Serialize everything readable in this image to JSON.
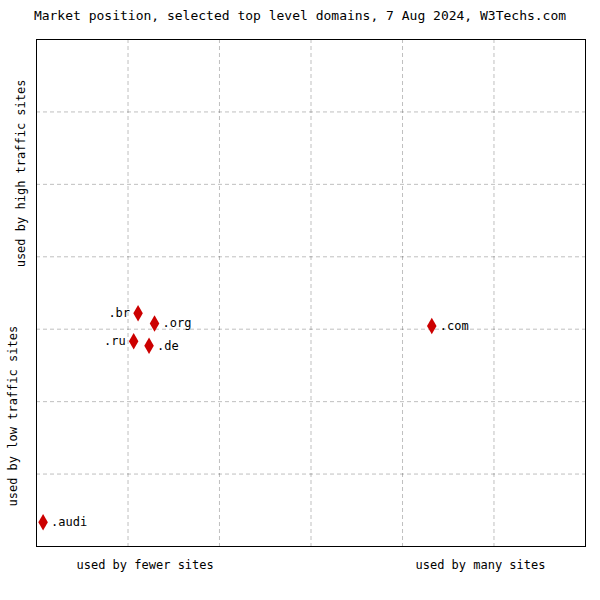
{
  "chart_data": {
    "type": "scatter",
    "title": "Market position, selected top level domains, 7 Aug 2024, W3Techs.com",
    "x_axis_labels": [
      "used by fewer sites",
      "used by many sites"
    ],
    "y_axis_labels": [
      "used by low traffic sites",
      "used by high traffic sites"
    ],
    "points": [
      {
        "label": ".com",
        "x": 0.72,
        "y": 0.435
      },
      {
        "label": ".br",
        "x": 0.185,
        "y": 0.46
      },
      {
        "label": ".org",
        "x": 0.215,
        "y": 0.44
      },
      {
        "label": ".ru",
        "x": 0.177,
        "y": 0.405
      },
      {
        "label": ".de",
        "x": 0.205,
        "y": 0.396
      },
      {
        "label": ".audi",
        "x": 0.012,
        "y": 0.048
      }
    ],
    "color": "#cc0000",
    "marker": "diamond",
    "xlim": [
      0,
      1
    ],
    "ylim": [
      0,
      1
    ],
    "xticks": [
      0.0,
      0.1667,
      0.3333,
      0.5,
      0.6667,
      0.8333,
      1.0
    ],
    "yticks": [
      0.0,
      0.1429,
      0.2857,
      0.4286,
      0.5714,
      0.7143,
      0.8571,
      1.0
    ],
    "grid": true,
    "tick_labels": false
  }
}
